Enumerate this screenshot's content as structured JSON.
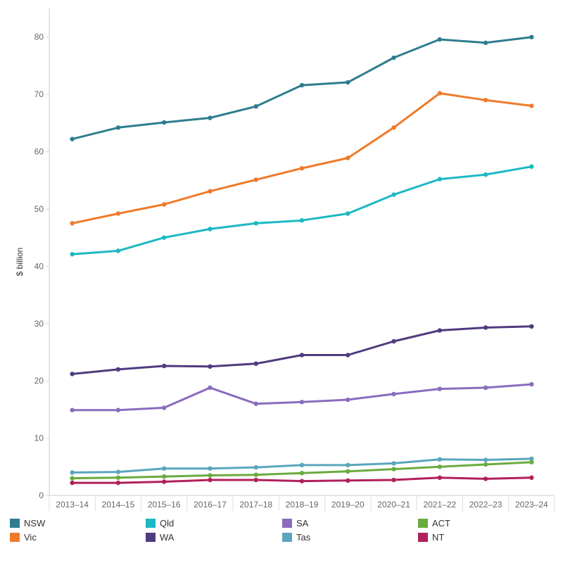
{
  "chart_data": {
    "type": "line",
    "ylabel": "$ billion",
    "xlabel": "",
    "ylim": [
      0,
      85
    ],
    "yticks": [
      0,
      10,
      20,
      30,
      40,
      50,
      60,
      70,
      80
    ],
    "grid": false,
    "legend_position": "bottom",
    "categories": [
      "2013–14",
      "2014–15",
      "2015–16",
      "2016–17",
      "2017–18",
      "2018–19",
      "2019–20",
      "2020–21",
      "2021–22",
      "2022–23",
      "2023–24"
    ],
    "series": [
      {
        "name": "NSW",
        "color": "#2e7d8f",
        "values": [
          62.2,
          64.2,
          65.1,
          65.9,
          67.9,
          71.6,
          72.1,
          76.4,
          79.6,
          79.0,
          80.0
        ]
      },
      {
        "name": "Vic",
        "color": "#f07a2b",
        "values": [
          47.5,
          49.2,
          50.8,
          53.1,
          55.1,
          57.1,
          58.9,
          64.2,
          70.2,
          69.0,
          68.0
        ]
      },
      {
        "name": "Qld",
        "color": "#1cb8c3",
        "values": [
          42.1,
          42.7,
          45.0,
          46.5,
          47.5,
          48.0,
          49.2,
          52.5,
          55.2,
          56.0,
          57.4
        ]
      },
      {
        "name": "WA",
        "color": "#4f3b7f",
        "values": [
          21.2,
          22.0,
          22.6,
          22.5,
          23.0,
          24.5,
          24.5,
          26.9,
          28.8,
          29.3,
          29.5
        ]
      },
      {
        "name": "SA",
        "color": "#8a6cbf",
        "values": [
          14.9,
          14.9,
          15.3,
          18.8,
          16.0,
          16.3,
          16.7,
          17.7,
          18.6,
          18.8,
          19.4
        ]
      },
      {
        "name": "Tas",
        "color": "#5aa5bd",
        "values": [
          4.0,
          4.1,
          4.7,
          4.7,
          4.9,
          5.3,
          5.3,
          5.6,
          6.3,
          6.2,
          6.4
        ]
      },
      {
        "name": "ACT",
        "color": "#6aab3e",
        "values": [
          3.0,
          3.1,
          3.3,
          3.5,
          3.6,
          3.9,
          4.2,
          4.6,
          5.0,
          5.4,
          5.8
        ]
      },
      {
        "name": "NT",
        "color": "#b0205a",
        "values": [
          2.2,
          2.2,
          2.4,
          2.7,
          2.7,
          2.5,
          2.6,
          2.7,
          3.1,
          2.9,
          3.1
        ]
      }
    ]
  },
  "legend": {
    "items": [
      {
        "label": "NSW",
        "color": "#2e7d8f"
      },
      {
        "label": "Qld",
        "color": "#1cb8c3"
      },
      {
        "label": "SA",
        "color": "#8a6cbf"
      },
      {
        "label": "ACT",
        "color": "#6aab3e"
      },
      {
        "label": "Vic",
        "color": "#f07a2b"
      },
      {
        "label": "WA",
        "color": "#4f3b7f"
      },
      {
        "label": "Tas",
        "color": "#5aa5bd"
      },
      {
        "label": "NT",
        "color": "#b0205a"
      }
    ]
  }
}
